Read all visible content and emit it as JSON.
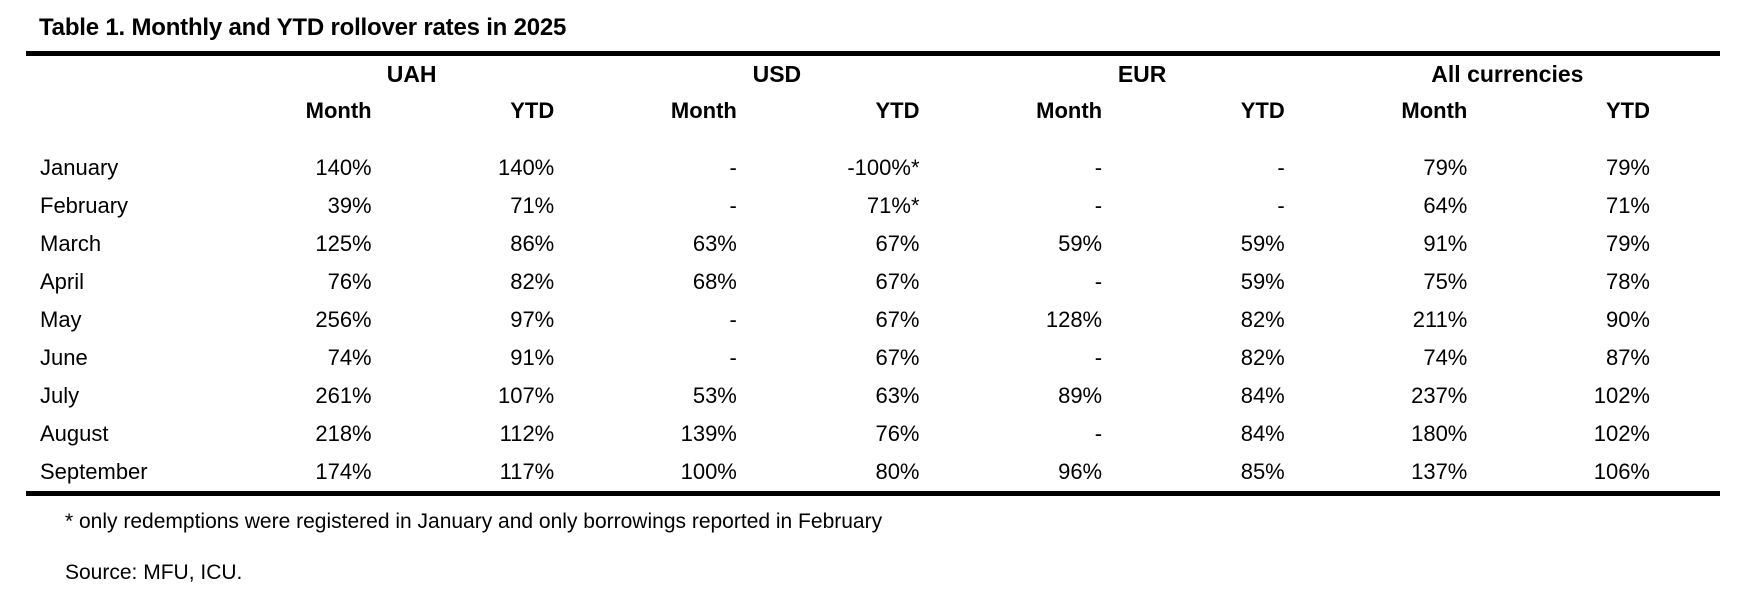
{
  "title": "Table 1. Monthly and YTD rollover rates in 2025",
  "table": {
    "groups": [
      {
        "label": "UAH"
      },
      {
        "label": "USD"
      },
      {
        "label": "EUR"
      },
      {
        "label": "All currencies"
      }
    ],
    "subheaders": [
      "Month",
      "YTD",
      "Month",
      "YTD",
      "Month",
      "YTD",
      "Month",
      "YTD"
    ],
    "rows": [
      {
        "month": "January",
        "values": [
          "140%",
          "140%",
          "-",
          "-100%*",
          "-",
          "-",
          "79%",
          "79%"
        ]
      },
      {
        "month": "February",
        "values": [
          "39%",
          "71%",
          "-",
          "71%*",
          "-",
          "-",
          "64%",
          "71%"
        ]
      },
      {
        "month": "March",
        "values": [
          "125%",
          "86%",
          "63%",
          "67%",
          "59%",
          "59%",
          "91%",
          "79%"
        ]
      },
      {
        "month": "April",
        "values": [
          "76%",
          "82%",
          "68%",
          "67%",
          "-",
          "59%",
          "75%",
          "78%"
        ]
      },
      {
        "month": "May",
        "values": [
          "256%",
          "97%",
          "-",
          "67%",
          "128%",
          "82%",
          "211%",
          "90%"
        ]
      },
      {
        "month": "June",
        "values": [
          "74%",
          "91%",
          "-",
          "67%",
          "-",
          "82%",
          "74%",
          "87%"
        ]
      },
      {
        "month": "July",
        "values": [
          "261%",
          "107%",
          "53%",
          "63%",
          "89%",
          "84%",
          "237%",
          "102%"
        ]
      },
      {
        "month": "August",
        "values": [
          "218%",
          "112%",
          "139%",
          "76%",
          "-",
          "84%",
          "180%",
          "102%"
        ]
      },
      {
        "month": "September",
        "values": [
          "174%",
          "117%",
          "100%",
          "80%",
          "96%",
          "85%",
          "137%",
          "106%"
        ]
      }
    ]
  },
  "footnote": "* only redemptions were registered in January and only borrowings reported in February",
  "source": "Source: MFU, ICU.",
  "colors": {
    "background": "#ffffff",
    "text": "#000000",
    "rule": "#000000"
  }
}
